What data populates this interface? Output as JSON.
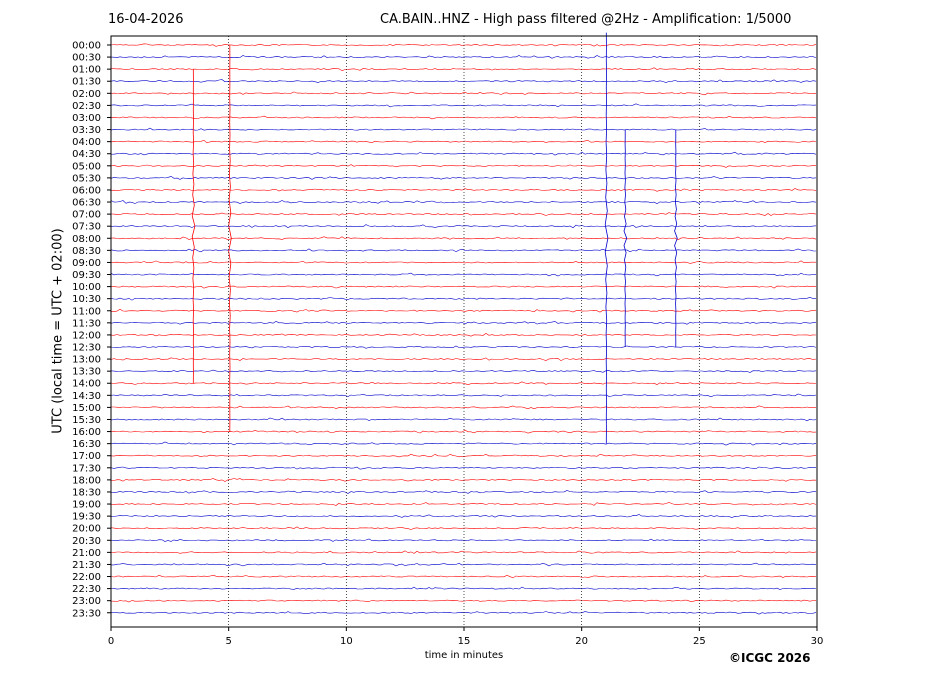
{
  "header": {
    "date": "16-04-2026",
    "title": "CA.BAIN..HNZ - High pass filtered @2Hz - Amplification: 1/5000"
  },
  "footer": {
    "copyright": "©ICGC 2026"
  },
  "chart_data": {
    "type": "line",
    "title": "CA.BAIN..HNZ - High pass filtered @2Hz - Amplification: 1/5000",
    "xlabel": "time in minutes",
    "ylabel": "UTC (local time = UTC + 02:00)",
    "xlim": [
      0,
      30
    ],
    "x_ticks": [
      "0",
      "5",
      "10",
      "15",
      "20",
      "25",
      "30"
    ],
    "x_grid": "dotted vertical lines at 5, 10, 15, 20, 25",
    "row_labels": [
      "00:00",
      "00:30",
      "01:00",
      "01:30",
      "02:00",
      "02:30",
      "03:00",
      "03:30",
      "04:00",
      "04:30",
      "05:00",
      "05:30",
      "06:00",
      "06:30",
      "07:00",
      "07:30",
      "08:00",
      "08:30",
      "09:00",
      "09:30",
      "10:00",
      "10:30",
      "11:00",
      "11:30",
      "12:00",
      "12:30",
      "13:00",
      "13:30",
      "14:00",
      "14:30",
      "15:00",
      "15:30",
      "16:00",
      "16:30",
      "17:00",
      "17:30",
      "18:00",
      "18:30",
      "19:00",
      "19:30",
      "20:00",
      "20:30",
      "21:00",
      "21:30",
      "22:00",
      "22:30",
      "23:00",
      "23:30"
    ],
    "trace_colors": [
      "#ff0000",
      "#0000cc"
    ],
    "events": [
      {
        "row": "07:00",
        "minute": 5.05,
        "color": "#ff0000",
        "amplitude_rows": [
          -14,
          18
        ]
      },
      {
        "row": "07:00",
        "minute": 3.5,
        "color": "#ff0000",
        "amplitude_rows": [
          -12,
          14
        ]
      },
      {
        "row": "07:30",
        "minute": 21.05,
        "color": "#0000cc",
        "amplitude_rows": [
          -16,
          18
        ]
      },
      {
        "row": "07:30",
        "minute": 21.85,
        "color": "#0000cc",
        "amplitude_rows": [
          -8,
          10
        ]
      },
      {
        "row": "07:30",
        "minute": 24.0,
        "color": "#0000cc",
        "amplitude_rows": [
          -8,
          10
        ]
      }
    ]
  }
}
